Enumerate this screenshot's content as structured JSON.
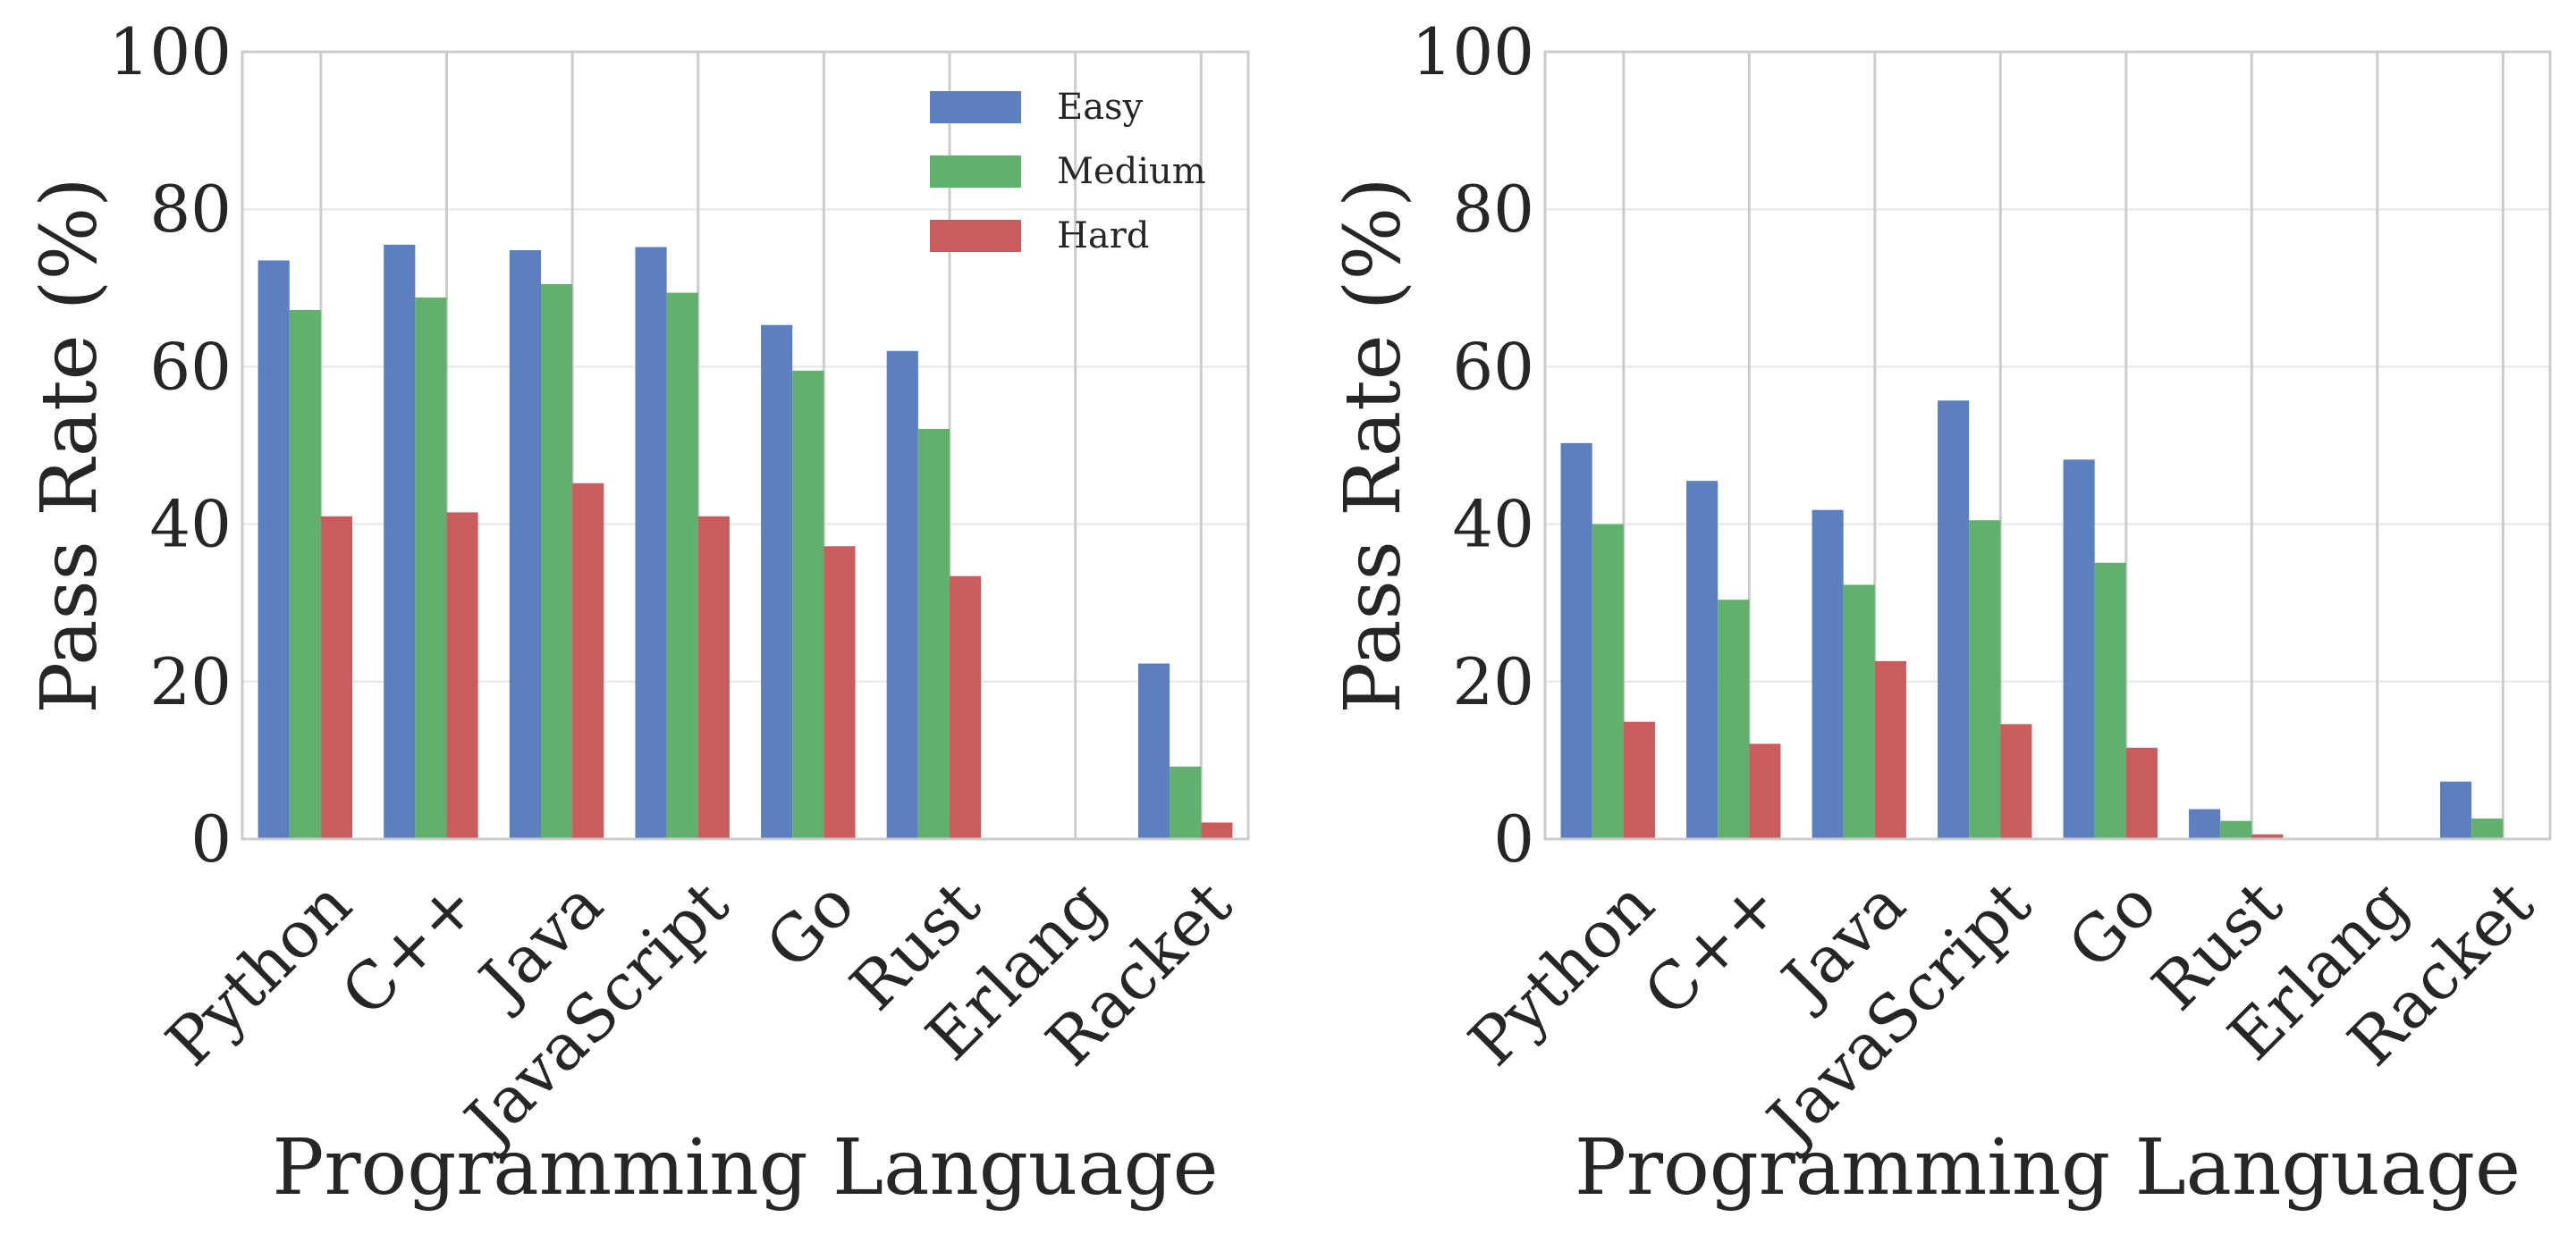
{
  "chart_data": [
    {
      "type": "bar",
      "categories": [
        "Python",
        "C++",
        "Java",
        "JavaScript",
        "Go",
        "Rust",
        "Erlang",
        "Racket"
      ],
      "series": [
        {
          "name": "Easy",
          "color": "#5b7fbf",
          "values": [
            73.5,
            75.5,
            74.8,
            75.2,
            65.3,
            62.0,
            0,
            22.3
          ]
        },
        {
          "name": "Medium",
          "color": "#62b06e",
          "values": [
            67.2,
            68.8,
            70.5,
            69.4,
            59.5,
            52.1,
            0,
            9.2
          ]
        },
        {
          "name": "Hard",
          "color": "#cb5c5e",
          "values": [
            41.0,
            41.5,
            45.2,
            41.0,
            37.2,
            33.4,
            0,
            2.1
          ]
        }
      ],
      "xlabel": "Programming Language",
      "ylabel": "Pass Rate (%)",
      "ylim": [
        0,
        100
      ],
      "yticks": [
        "0",
        "20",
        "40",
        "60",
        "80",
        "100"
      ],
      "legend": "top-right",
      "grid": true
    },
    {
      "type": "bar",
      "categories": [
        "Python",
        "C++",
        "Java",
        "JavaScript",
        "Go",
        "Rust",
        "Erlang",
        "Racket"
      ],
      "series": [
        {
          "name": "Easy",
          "color": "#5b7fbf",
          "values": [
            50.3,
            45.5,
            41.8,
            55.7,
            48.2,
            3.8,
            0,
            7.3
          ]
        },
        {
          "name": "Medium",
          "color": "#62b06e",
          "values": [
            40.0,
            30.4,
            32.3,
            40.5,
            35.1,
            2.3,
            0,
            2.6
          ]
        },
        {
          "name": "Hard",
          "color": "#cb5c5e",
          "values": [
            14.9,
            12.1,
            22.6,
            14.6,
            11.6,
            0.6,
            0,
            0
          ]
        }
      ],
      "xlabel": "Programming Language",
      "ylabel": "Pass Rate (%)",
      "ylim": [
        0,
        100
      ],
      "yticks": [
        "0",
        "20",
        "40",
        "60",
        "80",
        "100"
      ],
      "legend": "none",
      "grid": true
    }
  ]
}
